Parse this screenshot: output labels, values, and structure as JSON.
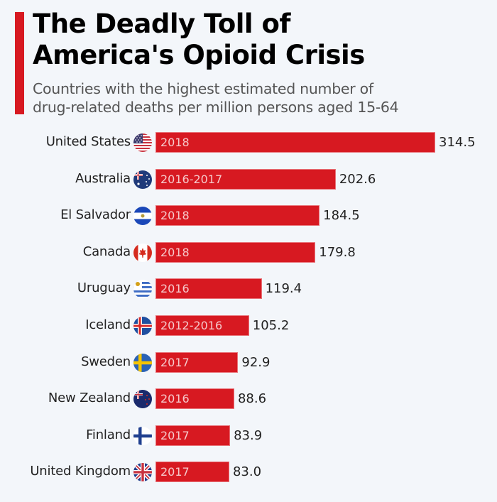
{
  "title_line1": "The Deadly Toll of",
  "title_line2": "America's Opioid Crisis",
  "subtitle_line1": "Countries with the highest estimated number of",
  "subtitle_line2": "drug-related deaths per million persons aged 15-64",
  "colors": {
    "bar": "#d71921",
    "accent": "#d71921",
    "background": "#f3f6fa"
  },
  "chart_data": {
    "type": "bar",
    "orientation": "horizontal",
    "title": "The Deadly Toll of America's Opioid Crisis",
    "subtitle": "Countries with the highest estimated number of drug-related deaths per million persons aged 15-64",
    "xlabel": "",
    "ylabel": "",
    "grid": false,
    "xlim": [
      0,
      314.5
    ],
    "categories": [
      "United States",
      "Australia",
      "El Salvador",
      "Canada",
      "Uruguay",
      "Iceland",
      "Sweden",
      "New Zealand",
      "Finland",
      "United Kingdom"
    ],
    "values": [
      314.5,
      202.6,
      184.5,
      179.8,
      119.4,
      105.2,
      92.9,
      88.6,
      83.9,
      83.0
    ],
    "value_labels": [
      "314.5",
      "202.6",
      "184.5",
      "179.8",
      "119.4",
      "105.2",
      "92.9",
      "88.6",
      "83.9",
      "83.0"
    ],
    "periods": [
      "2018",
      "2016-2017",
      "2018",
      "2018",
      "2016",
      "2012-2016",
      "2017",
      "2016",
      "2017",
      "2017"
    ],
    "flags": [
      "us-flag-icon",
      "australia-flag-icon",
      "el-salvador-flag-icon",
      "canada-flag-icon",
      "uruguay-flag-icon",
      "iceland-flag-icon",
      "sweden-flag-icon",
      "new-zealand-flag-icon",
      "finland-flag-icon",
      "uk-flag-icon"
    ]
  }
}
